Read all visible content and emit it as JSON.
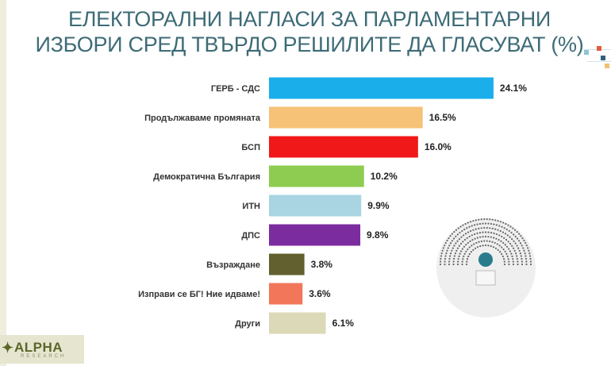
{
  "title_line1": "ЕЛЕКТОРАЛНИ НАГЛАСИ ЗА ПАРЛАМЕНТАРНИ",
  "title_line2": "ИЗБОРИ СРЕД ТВЪРДО РЕШИЛИТЕ ДА ГЛАСУВАТ (%)",
  "logo": {
    "name": "ALPHA",
    "sub": "RESEARCH"
  },
  "chart_data": {
    "type": "bar",
    "orientation": "horizontal",
    "title": "ЕЛЕКТОРАЛНИ НАГЛАСИ ЗА ПАРЛАМЕНТАРНИ ИЗБОРИ СРЕД ТВЪРДО РЕШИЛИТЕ ДА ГЛАСУВАТ (%)",
    "categories": [
      "ГЕРБ - СДС",
      "Продължаваме промяната",
      "БСП",
      "Демократична България",
      "ИТН",
      "ДПС",
      "Възраждане",
      "Изправи се БГ! Ние идваме!",
      "Други"
    ],
    "values": [
      24.1,
      16.5,
      16.0,
      10.2,
      9.9,
      9.8,
      3.8,
      3.6,
      6.1
    ],
    "value_labels": [
      "24.1%",
      "16.5%",
      "16.0%",
      "10.2%",
      "9.9%",
      "9.8%",
      "3.8%",
      "3.6%",
      "6.1%"
    ],
    "colors": [
      "#1aaeea",
      "#f6c277",
      "#f01818",
      "#8dcc50",
      "#a9d5e3",
      "#7b2d9f",
      "#62602f",
      "#f2775a",
      "#dcd9b8"
    ],
    "grid": false,
    "axes_visible": false
  }
}
